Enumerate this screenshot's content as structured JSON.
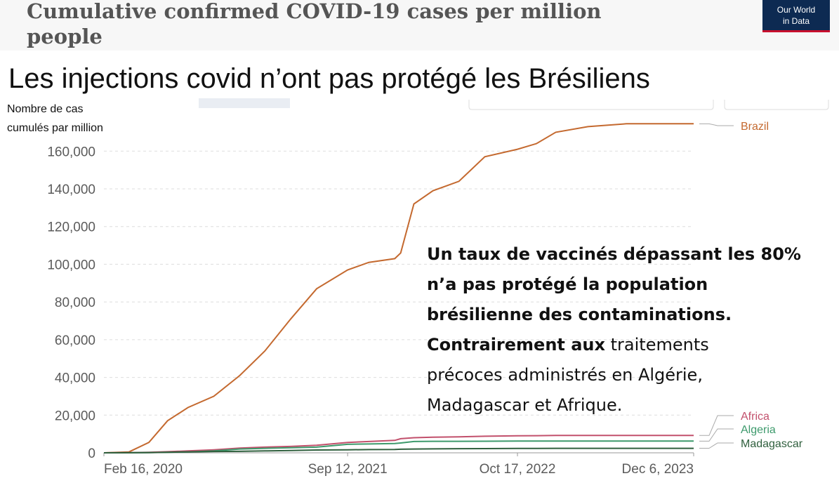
{
  "header": {
    "title_lines": [
      "Cumulative confirmed COVID-19 cases per million",
      "people"
    ],
    "logo_lines": [
      "Our World",
      "in Data"
    ]
  },
  "chart_data": {
    "type": "line",
    "title": "Les injections covid n’ont pas protégé les Brésiliens",
    "ylabel_lines": [
      "Nombre de cas",
      "cumulés par million"
    ],
    "x": [
      "2020-02-16",
      "2020-04-15",
      "2020-06-01",
      "2020-07-15",
      "2020-09-01",
      "2020-11-01",
      "2021-01-01",
      "2021-03-01",
      "2021-05-01",
      "2021-07-01",
      "2021-09-12",
      "2021-11-01",
      "2022-01-01",
      "2022-01-15",
      "2022-02-15",
      "2022-04-01",
      "2022-06-01",
      "2022-08-01",
      "2022-10-17",
      "2022-12-01",
      "2023-01-15",
      "2023-04-01",
      "2023-07-01",
      "2023-12-06"
    ],
    "series": [
      {
        "name": "Brazil",
        "color": "#c4692f",
        "values": [
          0,
          500,
          5500,
          17000,
          24000,
          30000,
          41000,
          54000,
          71000,
          87000,
          97000,
          101000,
          103000,
          106000,
          132000,
          139000,
          144000,
          157000,
          161000,
          164000,
          170000,
          173000,
          174500,
          174500
        ]
      },
      {
        "name": "Africa",
        "color": "#c2506c",
        "values": [
          0,
          100,
          300,
          600,
          1000,
          1600,
          2500,
          3000,
          3400,
          4000,
          5500,
          6000,
          6600,
          7500,
          8000,
          8300,
          8500,
          8800,
          9000,
          9100,
          9200,
          9200,
          9200,
          9200
        ]
      },
      {
        "name": "Algeria",
        "color": "#3d9a6c",
        "values": [
          0,
          50,
          150,
          300,
          500,
          1000,
          2000,
          2400,
          2700,
          3000,
          4500,
          4700,
          4900,
          5200,
          6000,
          6100,
          6100,
          6150,
          6200,
          6200,
          6200,
          6200,
          6200,
          6200
        ]
      },
      {
        "name": "Madagascar",
        "color": "#2f5f3d",
        "values": [
          0,
          20,
          100,
          300,
          500,
          700,
          800,
          1000,
          1200,
          1500,
          1600,
          1700,
          1800,
          1900,
          2000,
          2100,
          2200,
          2250,
          2300,
          2350,
          2400,
          2400,
          2400,
          2400
        ]
      }
    ],
    "xlim": [
      "2020-02-16",
      "2023-12-06"
    ],
    "xticks": [
      {
        "value": "2020-02-16",
        "label": "Feb 16, 2020"
      },
      {
        "value": "2021-09-12",
        "label": "Sep 12, 2021"
      },
      {
        "value": "2022-10-17",
        "label": "Oct 17, 2022"
      },
      {
        "value": "2023-12-06",
        "label": "Dec 6, 2023"
      }
    ],
    "ylim": [
      0,
      175000
    ],
    "yticks": [
      0,
      {
        "value": 20000,
        "label": "20,000"
      },
      {
        "value": 40000,
        "label": "40,000"
      },
      {
        "value": 60000,
        "label": "60,000"
      },
      {
        "value": 80000,
        "label": "80,000"
      },
      {
        "value": 100000,
        "label": "100,000"
      },
      {
        "value": 120000,
        "label": "120,000"
      },
      {
        "value": 140000,
        "label": "140,000"
      },
      {
        "value": 160000,
        "label": "160,000"
      }
    ],
    "grid": true,
    "annotation": [
      [
        {
          "text": "Un taux de vaccinés dépassant les 80%",
          "bold": true
        }
      ],
      [
        {
          "text": "n’a pas protégé la population",
          "bold": true
        }
      ],
      [
        {
          "text": "brésilienne des contaminations.",
          "bold": true
        }
      ],
      [
        {
          "text": "Contrairement aux",
          "bold": true
        },
        {
          "text": " traitements",
          "bold": false
        }
      ],
      [
        {
          "text": "précoces administrés en Algérie,",
          "bold": false
        }
      ],
      [
        {
          "text": "Madagascar et Afrique.",
          "bold": false
        }
      ]
    ]
  }
}
